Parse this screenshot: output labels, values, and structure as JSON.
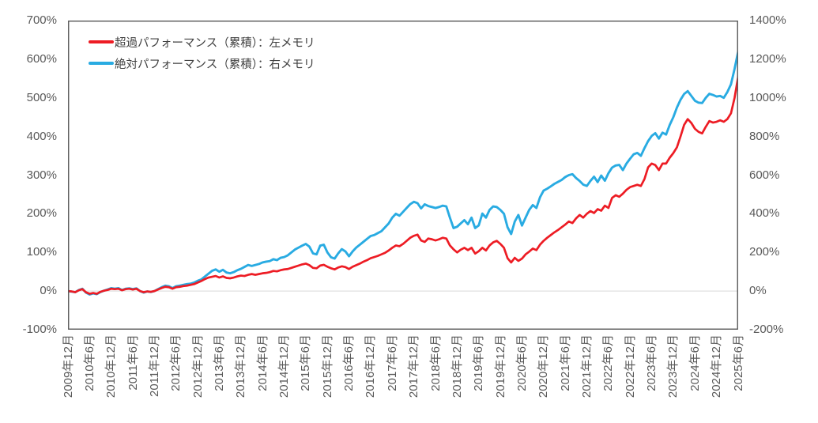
{
  "chart_data": {
    "type": "line",
    "title": "",
    "frequency": "monthly",
    "x_start_label": "2009年12月",
    "x_end_label": "2025年6月",
    "x_tick_labels": [
      "2009年12月",
      "2010年6月",
      "2010年12月",
      "2011年6月",
      "2011年12月",
      "2012年6月",
      "2012年12月",
      "2013年6月",
      "2013年12月",
      "2014年6月",
      "2014年12月",
      "2015年6月",
      "2015年12月",
      "2016年6月",
      "2016年12月",
      "2017年6月",
      "2017年12月",
      "2018年6月",
      "2018年12月",
      "2019年6月",
      "2019年12月",
      "2020年6月",
      "2020年12月",
      "2021年6月",
      "2021年12月",
      "2022年6月",
      "2022年12月",
      "2023年6月",
      "2023年12月",
      "2024年6月",
      "2024年12月",
      "2025年6月"
    ],
    "x_tick_every": 6,
    "left_axis": {
      "min": -100,
      "max": 700,
      "step": 100,
      "ticks": [
        "700%",
        "600%",
        "500%",
        "400%",
        "300%",
        "200%",
        "100%",
        "0%",
        "-100%"
      ]
    },
    "right_axis": {
      "min": -200,
      "max": 1400,
      "step": 200,
      "ticks": [
        "1400%",
        "1200%",
        "1000%",
        "800%",
        "600%",
        "400%",
        "200%",
        "0%",
        "-200%"
      ]
    },
    "gridline": {
      "at_value": 0,
      "color": "#d9d9d9"
    },
    "plot_border_color": "#595959",
    "axis_text_color": "#595959",
    "legend_position": "top-left-inside",
    "series": [
      {
        "name": "超過パフォーマンス（累積）：左メモリ",
        "axis": "left",
        "color": "#ed1c24",
        "values": [
          0,
          -1,
          -3,
          2,
          5,
          -3,
          -7,
          -5,
          -7,
          -2,
          1,
          3,
          6,
          5,
          6,
          2,
          5,
          6,
          4,
          6,
          0,
          -3,
          -1,
          -2,
          0,
          4,
          8,
          11,
          10,
          6,
          10,
          11,
          13,
          14,
          16,
          18,
          22,
          26,
          31,
          35,
          37,
          39,
          35,
          38,
          34,
          33,
          35,
          38,
          40,
          39,
          42,
          44,
          42,
          44,
          46,
          47,
          49,
          52,
          51,
          54,
          56,
          57,
          60,
          63,
          66,
          69,
          71,
          67,
          60,
          59,
          66,
          68,
          63,
          59,
          56,
          61,
          64,
          62,
          57,
          63,
          67,
          71,
          76,
          80,
          85,
          88,
          91,
          95,
          99,
          105,
          112,
          118,
          116,
          122,
          130,
          138,
          143,
          146,
          131,
          127,
          136,
          134,
          131,
          134,
          138,
          136,
          118,
          108,
          100,
          107,
          112,
          106,
          112,
          97,
          103,
          112,
          105,
          118,
          126,
          130,
          122,
          112,
          85,
          74,
          86,
          78,
          84,
          95,
          102,
          110,
          106,
          120,
          130,
          138,
          145,
          152,
          158,
          165,
          172,
          180,
          176,
          188,
          197,
          190,
          200,
          207,
          202,
          212,
          208,
          221,
          215,
          241,
          248,
          244,
          252,
          262,
          269,
          272,
          275,
          272,
          290,
          320,
          330,
          326,
          313,
          330,
          330,
          345,
          357,
          372,
          400,
          430,
          445,
          435,
          420,
          412,
          408,
          425,
          440,
          436,
          438,
          442,
          438,
          445,
          460,
          500,
          555
        ]
      },
      {
        "name": "絶対パフォーマンス（累積）：右メモリ",
        "axis": "right",
        "color": "#29abe2",
        "values": [
          0,
          -3,
          -6,
          5,
          12,
          -8,
          -18,
          -12,
          -16,
          -5,
          2,
          8,
          15,
          12,
          15,
          5,
          12,
          14,
          10,
          14,
          0,
          -8,
          -2,
          -5,
          0,
          10,
          20,
          28,
          25,
          15,
          25,
          28,
          32,
          36,
          38,
          44,
          53,
          60,
          75,
          90,
          105,
          112,
          100,
          110,
          96,
          92,
          98,
          108,
          115,
          125,
          135,
          130,
          135,
          140,
          148,
          152,
          155,
          165,
          160,
          172,
          176,
          185,
          200,
          215,
          225,
          235,
          244,
          230,
          195,
          190,
          235,
          240,
          200,
          175,
          168,
          195,
          217,
          205,
          180,
          205,
          225,
          240,
          255,
          270,
          285,
          290,
          300,
          310,
          330,
          350,
          380,
          400,
          390,
          410,
          430,
          450,
          462,
          455,
          428,
          449,
          440,
          435,
          430,
          435,
          442,
          438,
          380,
          326,
          333,
          350,
          367,
          346,
          380,
          326,
          340,
          401,
          380,
          420,
          438,
          435,
          420,
          400,
          330,
          295,
          360,
          394,
          339,
          380,
          420,
          445,
          430,
          485,
          520,
          530,
          542,
          555,
          565,
          575,
          590,
          600,
          605,
          585,
          570,
          551,
          544,
          570,
          592,
          564,
          598,
          571,
          610,
          639,
          650,
          653,
          626,
          660,
          685,
          708,
          715,
          700,
          740,
          776,
          803,
          817,
          789,
          820,
          810,
          860,
          900,
          950,
          990,
          1020,
          1035,
          1010,
          985,
          975,
          973,
          1000,
          1021,
          1015,
          1007,
          1010,
          1000,
          1030,
          1070,
          1150,
          1240
        ]
      }
    ]
  }
}
